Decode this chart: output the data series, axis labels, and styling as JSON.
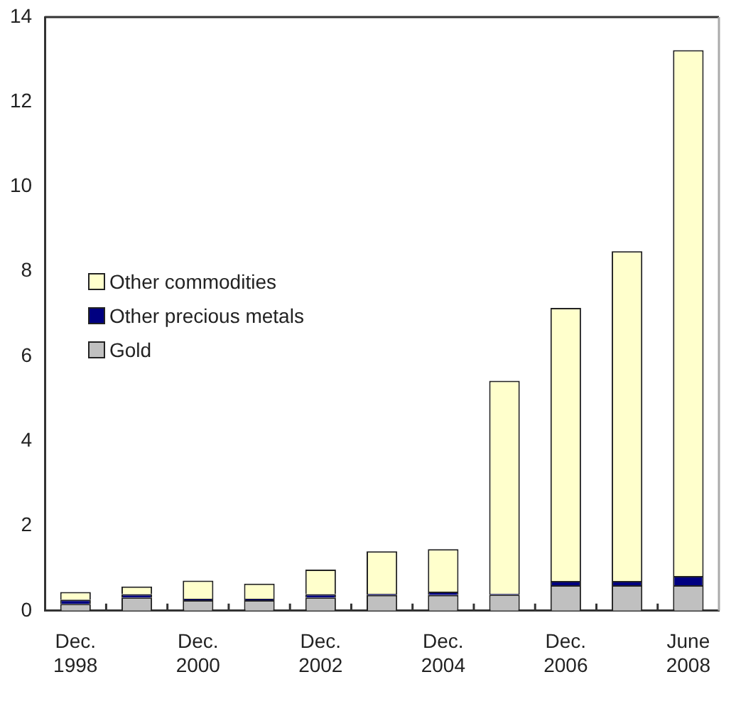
{
  "chart_data": {
    "type": "bar",
    "stacked": true,
    "categories": [
      "Dec. 1998",
      null,
      "Dec. 2000",
      null,
      "Dec. 2002",
      null,
      "Dec. 2004",
      null,
      "Dec. 2006",
      null,
      "June 2008"
    ],
    "series": [
      {
        "name": "Gold",
        "color": "#c0c0c0",
        "values": [
          0.16,
          0.31,
          0.25,
          0.25,
          0.31,
          0.37,
          0.37,
          0.38,
          0.6,
          0.6,
          0.6
        ]
      },
      {
        "name": "Other precious metals",
        "color": "#000080",
        "values": [
          0.1,
          0.08,
          0.03,
          0.03,
          0.08,
          0.03,
          0.08,
          0.02,
          0.1,
          0.1,
          0.22
        ]
      },
      {
        "name": "Other commodities",
        "color": "#ffffcc",
        "values": [
          0.18,
          0.18,
          0.43,
          0.36,
          0.58,
          1.0,
          1.0,
          5.02,
          6.44,
          7.78,
          12.4
        ]
      }
    ],
    "ylim": [
      0,
      14
    ],
    "yticks": [
      0,
      2,
      4,
      6,
      8,
      10,
      12,
      14
    ],
    "grid": false,
    "legend": "left"
  }
}
